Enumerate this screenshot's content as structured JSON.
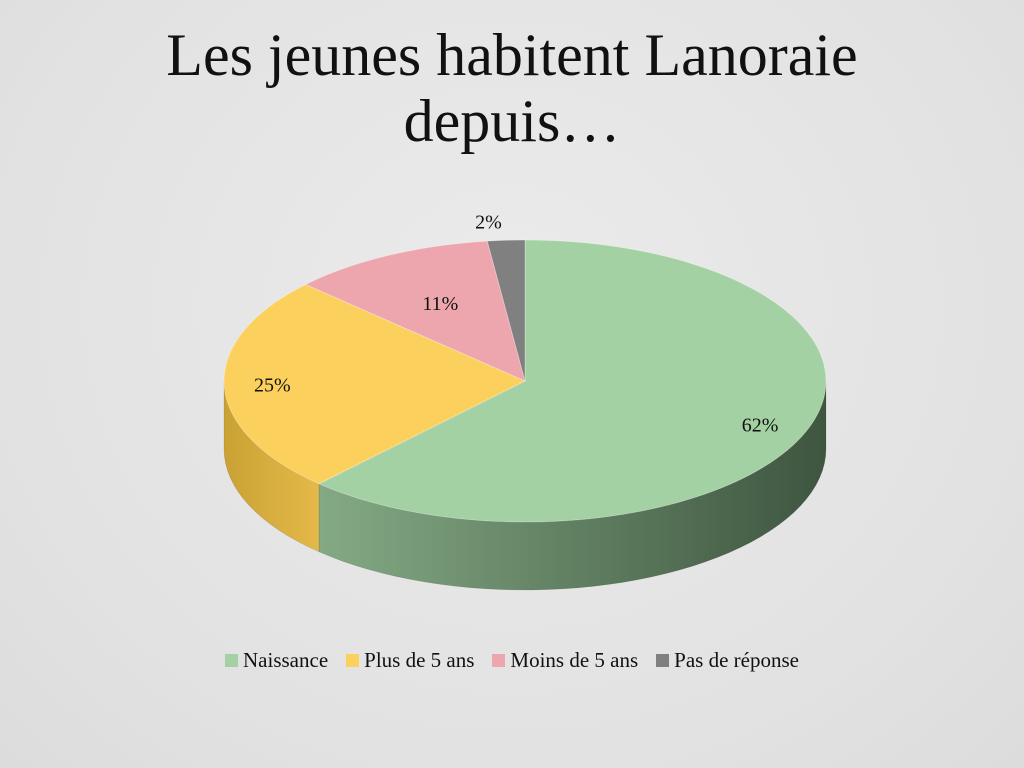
{
  "slide": {
    "title_line1": "Les jeunes habitent Lanoraie",
    "title_line2": "depuis…"
  },
  "chart_data": {
    "type": "pie",
    "style": "3d",
    "legend_position": "bottom",
    "series": [
      {
        "name": "Naissance",
        "value": 62,
        "label": "62%",
        "color": "#a3d1a3",
        "side_color": "#6e966e"
      },
      {
        "name": "Plus de 5 ans",
        "value": 25,
        "label": "25%",
        "color": "#fcd05c",
        "side_color": "#d8aa3c"
      },
      {
        "name": "Moins de 5 ans",
        "value": 11,
        "label": "11%",
        "color": "#eea6ae",
        "side_color": "#b9787f"
      },
      {
        "name": "Pas de réponse",
        "value": 2,
        "label": "2%",
        "color": "#808080",
        "side_color": "#5e5e5e"
      }
    ]
  }
}
